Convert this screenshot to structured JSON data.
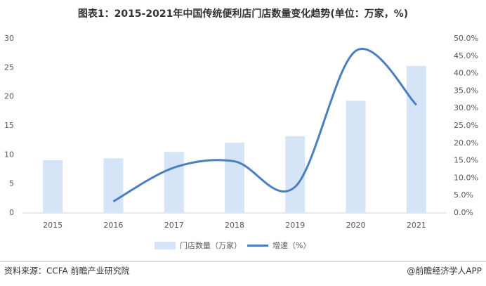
{
  "chart_data": {
    "type": "bar-line",
    "title": "图表1：2015-2021年中国传统便利店门店数量变化趋势(单位：万家，%)",
    "categories": [
      "2015",
      "2016",
      "2017",
      "2018",
      "2019",
      "2020",
      "2021"
    ],
    "series": [
      {
        "name": "门店数量（万家）",
        "type": "bar",
        "color": "#d6e4f8",
        "values": [
          9.1,
          9.4,
          10.5,
          12.1,
          13.2,
          19.3,
          25.3
        ]
      },
      {
        "name": "增速（%）",
        "type": "line",
        "axis": "y2",
        "color": "#4a7fc1",
        "values": [
          null,
          3.3,
          13,
          14.8,
          7.5,
          46.5,
          31
        ]
      }
    ],
    "ylim": [
      0,
      30
    ],
    "yticks": [
      0,
      5,
      10,
      15,
      20,
      25,
      30
    ],
    "y2lim": [
      0,
      50
    ],
    "y2ticks": [
      {
        "value": 0,
        "label": "0.0%"
      },
      {
        "value": 5,
        "label": "5.0%"
      },
      {
        "value": 10,
        "label": "10.0%"
      },
      {
        "value": 15,
        "label": "15.0%"
      },
      {
        "value": 20,
        "label": "20.0%"
      },
      {
        "value": 25,
        "label": "25.0%"
      },
      {
        "value": 30,
        "label": "30.0%"
      },
      {
        "value": 35,
        "label": "35.0%"
      },
      {
        "value": 40,
        "label": "40.0%"
      },
      {
        "value": 45,
        "label": "45.0%"
      },
      {
        "value": 50,
        "label": "50.0%"
      }
    ],
    "source": "资料来源：CCFA 前瞻产业研究院",
    "credit": "@前瞻经济学人APP"
  }
}
